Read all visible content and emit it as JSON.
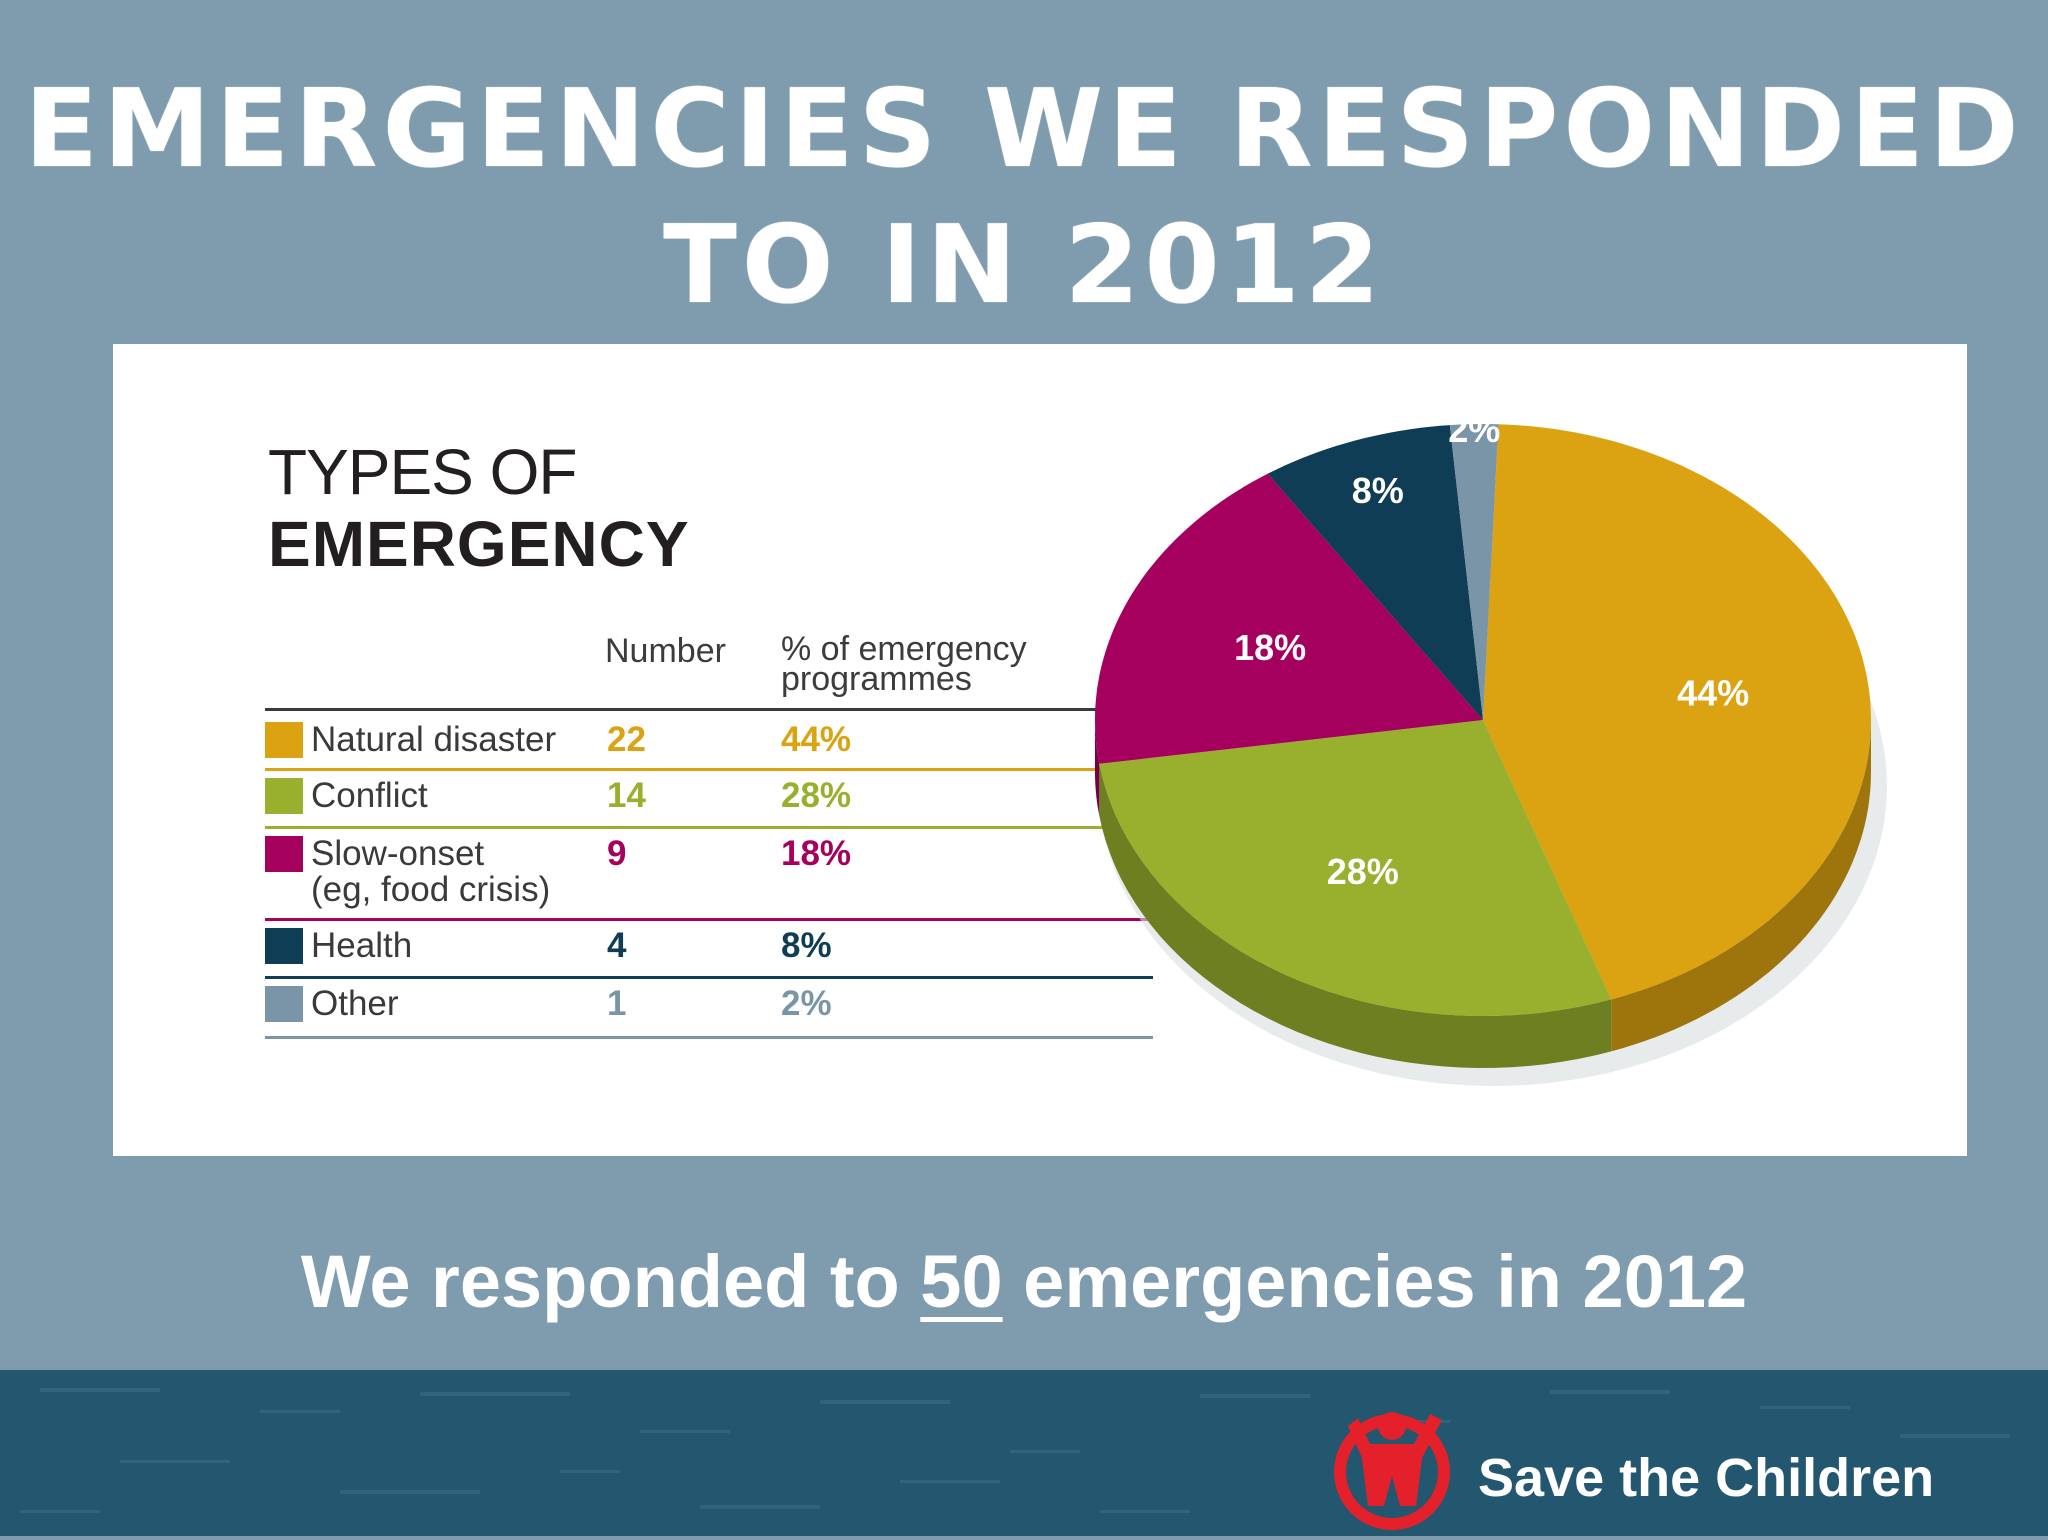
{
  "title": {
    "line1": "EMERGENCIES WE RESPONDED",
    "line2": "TO IN 2012"
  },
  "panel": {
    "heading_line1": "TYPES OF",
    "heading_line2": "EMERGENCY",
    "col_number": "Number",
    "col_pct_line1": "% of emergency",
    "col_pct_line2": "programmes"
  },
  "chart_data": {
    "type": "pie",
    "title": "TYPES OF EMERGENCY",
    "categories": [
      "Natural disaster",
      "Conflict",
      "Slow-onset (eg, food crisis)",
      "Health",
      "Other"
    ],
    "values": [
      44,
      28,
      18,
      8,
      2
    ],
    "counts": [
      22,
      14,
      9,
      4,
      1
    ],
    "data_labels": [
      "44%",
      "28%",
      "18%",
      "8%",
      "2%"
    ],
    "colors": [
      "#dba212",
      "#98b02e",
      "#a5005d",
      "#0e3d55",
      "#7b95a8"
    ],
    "table": [
      {
        "label": "Natural disaster",
        "label2": "",
        "number": "22",
        "pct": "44%",
        "color": "#dba212",
        "text_color": "#dba212"
      },
      {
        "label": "Conflict",
        "label2": "",
        "number": "14",
        "pct": "28%",
        "color": "#98b02e",
        "text_color": "#98b02e"
      },
      {
        "label": "Slow-onset",
        "label2": "(eg, food crisis)",
        "number": "9",
        "pct": "18%",
        "color": "#a5005d",
        "text_color": "#a5005d"
      },
      {
        "label": "Health",
        "label2": "",
        "number": "4",
        "pct": "8%",
        "color": "#0e3d55",
        "text_color": "#0e3d55"
      },
      {
        "label": "Other",
        "label2": "",
        "number": "1",
        "pct": "2%",
        "color": "#7b95a8",
        "text_color": "#7b95a8"
      }
    ]
  },
  "summary": {
    "before": "We responded to ",
    "number": "50",
    "after": " emergencies in 2012"
  },
  "brand": {
    "name": "Save the Children",
    "color": "#e4212a"
  }
}
